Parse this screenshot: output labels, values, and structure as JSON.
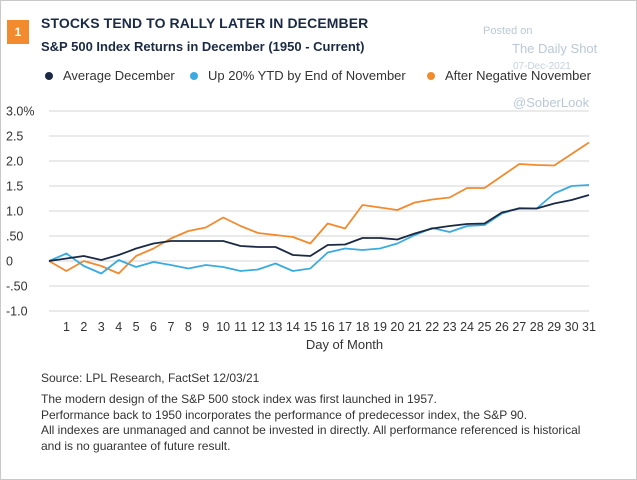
{
  "badge": "1",
  "title": "STOCKS TEND TO RALLY LATER IN DECEMBER",
  "subtitle": "S&P 500 Index Returns in December (1950 - Current)",
  "watermark": {
    "posted": "Posted on",
    "site": "The Daily Shot",
    "date": "07-Dec-2021",
    "handle": "@SoberLook"
  },
  "chart_data": {
    "type": "line",
    "xlabel": "Day of Month",
    "ylabel": "",
    "x": [
      0,
      1,
      2,
      3,
      4,
      5,
      6,
      7,
      8,
      9,
      10,
      11,
      12,
      13,
      14,
      15,
      16,
      17,
      18,
      19,
      20,
      21,
      22,
      23,
      24,
      25,
      26,
      27,
      28,
      29,
      30,
      31
    ],
    "xticks": [
      "1",
      "2",
      "3",
      "4",
      "5",
      "6",
      "7",
      "8",
      "9",
      "10",
      "11",
      "12",
      "13",
      "14",
      "15",
      "16",
      "17",
      "18",
      "19",
      "20",
      "21",
      "22",
      "23",
      "24",
      "25",
      "26",
      "27",
      "28",
      "29",
      "30",
      "31"
    ],
    "ylim": [
      -1.0,
      3.0
    ],
    "yticks": [
      "3.0%",
      "2.5",
      "2.0",
      "1.5",
      "1.0",
      ".50",
      "0",
      "-.50",
      "-1.0"
    ],
    "ytick_values": [
      3.0,
      2.5,
      2.0,
      1.5,
      1.0,
      0.5,
      0,
      -0.5,
      -1.0
    ],
    "grid": "horizontal",
    "legend_position": "top",
    "series": [
      {
        "name": "Average December",
        "color": "#1b2a44",
        "values": [
          0,
          0.05,
          0.1,
          0.02,
          0.12,
          0.25,
          0.35,
          0.4,
          0.4,
          0.4,
          0.4,
          0.3,
          0.28,
          0.28,
          0.12,
          0.1,
          0.32,
          0.33,
          0.46,
          0.46,
          0.43,
          0.55,
          0.65,
          0.7,
          0.74,
          0.75,
          0.97,
          1.05,
          1.05,
          1.15,
          1.22,
          1.32
        ]
      },
      {
        "name": "Up 20% YTD by End of November",
        "color": "#3aabe0",
        "values": [
          0,
          0.15,
          -0.1,
          -0.25,
          0.02,
          -0.12,
          -0.02,
          -0.08,
          -0.15,
          -0.08,
          -0.12,
          -0.2,
          -0.17,
          -0.05,
          -0.2,
          -0.15,
          0.17,
          0.25,
          0.22,
          0.25,
          0.35,
          0.52,
          0.66,
          0.58,
          0.7,
          0.72,
          0.95,
          1.06,
          1.05,
          1.35,
          1.5,
          1.52
        ]
      },
      {
        "name": "After Negative November",
        "color": "#f28a2e",
        "values": [
          0,
          -0.2,
          0,
          -0.1,
          -0.25,
          0.1,
          0.25,
          0.45,
          0.6,
          0.67,
          0.87,
          0.7,
          0.56,
          0.52,
          0.48,
          0.35,
          0.75,
          0.65,
          1.12,
          1.07,
          1.02,
          1.17,
          1.23,
          1.27,
          1.46,
          1.46,
          1.7,
          1.94,
          1.92,
          1.91,
          2.14,
          2.37
        ]
      }
    ]
  },
  "source": "Source: LPL Research, FactSet  12/03/21",
  "notes": [
    "The modern design of the S&P 500 stock index was first launched in 1957.",
    "Performance back to 1950 incorporates the performance of predecessor index, the S&P 90.",
    "All indexes are unmanaged and cannot be invested in directly. All performance referenced is historical",
    "and is no guarantee of future result."
  ]
}
